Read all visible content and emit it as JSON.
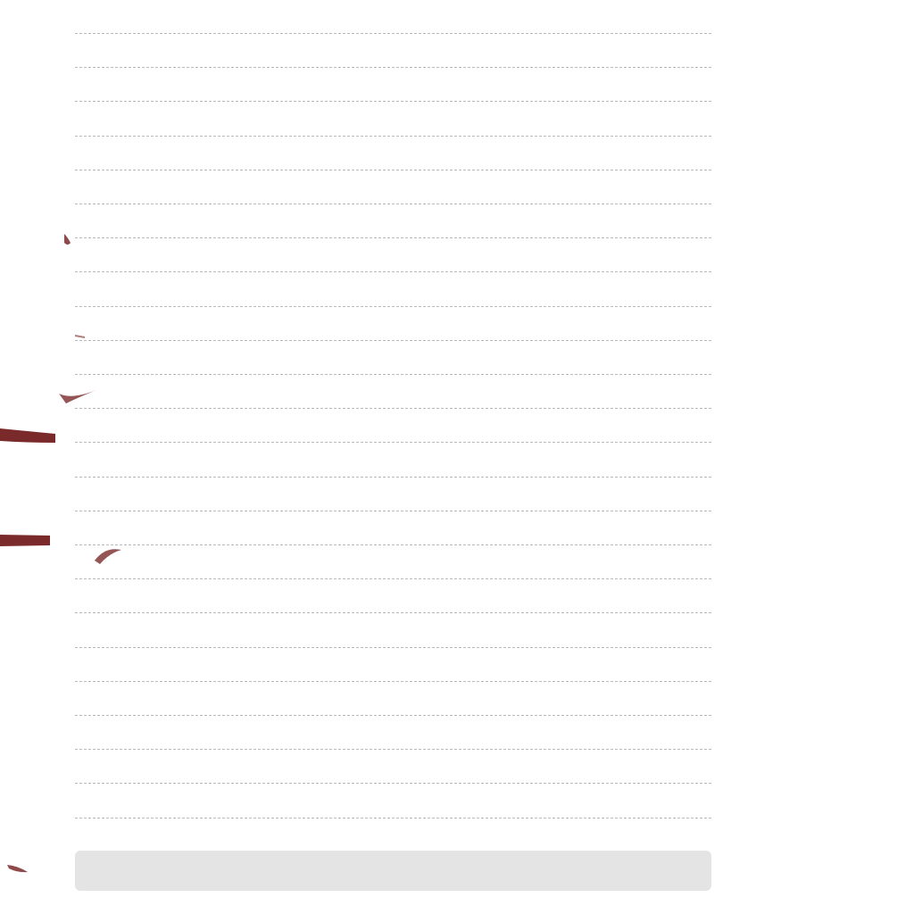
{
  "notebook": {
    "line_count": 24,
    "line_color": "#b9b9b9"
  },
  "input_bar": {
    "value": "",
    "placeholder": "",
    "background": "#e4e4e4"
  },
  "ink": {
    "stroke_color": "#7a2a2a"
  }
}
